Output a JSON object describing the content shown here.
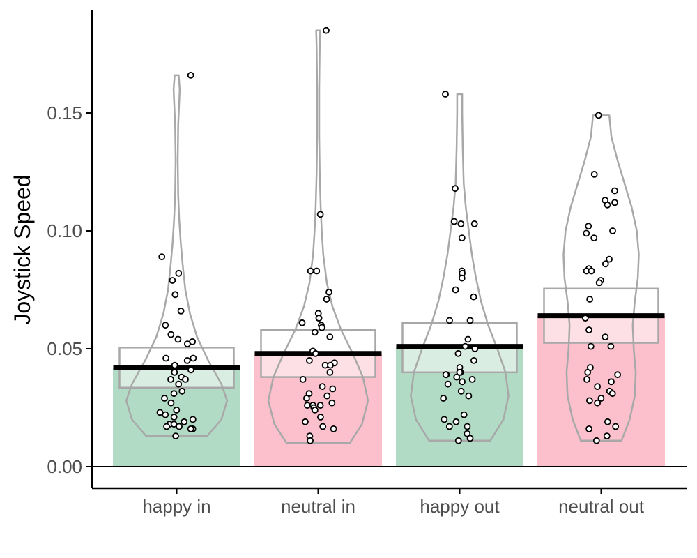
{
  "chart_data": {
    "type": "bar",
    "ylabel": "Joystick Speed",
    "xlabel": "",
    "ylim": [
      -0.01,
      0.195
    ],
    "yticks": [
      0.0,
      0.05,
      0.1,
      0.15
    ],
    "ytick_labels": [
      "0.00",
      "0.05",
      "0.10",
      "0.15"
    ],
    "grid": false,
    "categories": [
      "happy in",
      "neutral in",
      "happy out",
      "neutral out"
    ],
    "colors": {
      "happy": "#b2dbc5",
      "neutral": "#fbc0cc",
      "violin": "#a8a8a8",
      "mean_line": "#000000",
      "point_stroke": "#000000"
    },
    "groups": [
      {
        "label": "happy in",
        "color_key": "happy",
        "mean": 0.042,
        "ci": [
          0.0335,
          0.0505
        ],
        "violin": {
          "min": 0.013,
          "max": 0.166,
          "profile": [
            [
              0.013,
              0.6
            ],
            [
              0.02,
              0.88
            ],
            [
              0.028,
              0.99
            ],
            [
              0.035,
              0.88
            ],
            [
              0.045,
              0.62
            ],
            [
              0.055,
              0.4
            ],
            [
              0.065,
              0.26
            ],
            [
              0.075,
              0.17
            ],
            [
              0.085,
              0.12
            ],
            [
              0.095,
              0.08
            ],
            [
              0.105,
              0.05
            ],
            [
              0.115,
              0.03
            ],
            [
              0.13,
              0.02
            ],
            [
              0.145,
              0.03
            ],
            [
              0.16,
              0.06
            ],
            [
              0.166,
              0.04
            ]
          ]
        },
        "points": [
          0.166,
          0.089,
          0.082,
          0.079,
          0.073,
          0.066,
          0.06,
          0.056,
          0.054,
          0.053,
          0.052,
          0.046,
          0.046,
          0.045,
          0.043,
          0.041,
          0.04,
          0.038,
          0.037,
          0.037,
          0.035,
          0.032,
          0.031,
          0.029,
          0.027,
          0.024,
          0.023,
          0.022,
          0.021,
          0.02,
          0.019,
          0.018,
          0.018,
          0.017,
          0.017,
          0.016,
          0.016,
          0.013
        ]
      },
      {
        "label": "neutral in",
        "color_key": "neutral",
        "mean": 0.048,
        "ci": [
          0.038,
          0.058
        ],
        "violin": {
          "min": 0.01,
          "max": 0.185,
          "profile": [
            [
              0.01,
              0.62
            ],
            [
              0.018,
              0.86
            ],
            [
              0.028,
              0.98
            ],
            [
              0.038,
              0.88
            ],
            [
              0.048,
              0.68
            ],
            [
              0.058,
              0.45
            ],
            [
              0.068,
              0.28
            ],
            [
              0.078,
              0.17
            ],
            [
              0.09,
              0.1
            ],
            [
              0.1,
              0.07
            ],
            [
              0.11,
              0.05
            ],
            [
              0.125,
              0.03
            ],
            [
              0.14,
              0.02
            ],
            [
              0.16,
              0.02
            ],
            [
              0.178,
              0.03
            ],
            [
              0.185,
              0.04
            ]
          ]
        },
        "points": [
          0.185,
          0.107,
          0.083,
          0.083,
          0.074,
          0.071,
          0.065,
          0.063,
          0.063,
          0.061,
          0.06,
          0.059,
          0.057,
          0.055,
          0.049,
          0.048,
          0.045,
          0.044,
          0.043,
          0.043,
          0.04,
          0.037,
          0.034,
          0.033,
          0.031,
          0.03,
          0.029,
          0.027,
          0.026,
          0.026,
          0.026,
          0.025,
          0.024,
          0.021,
          0.019,
          0.017,
          0.016,
          0.013,
          0.011
        ]
      },
      {
        "label": "happy out",
        "color_key": "happy",
        "mean": 0.051,
        "ci": [
          0.04,
          0.061
        ],
        "violin": {
          "min": 0.011,
          "max": 0.158,
          "profile": [
            [
              0.011,
              0.6
            ],
            [
              0.02,
              0.86
            ],
            [
              0.03,
              0.96
            ],
            [
              0.04,
              0.9
            ],
            [
              0.05,
              0.74
            ],
            [
              0.06,
              0.56
            ],
            [
              0.07,
              0.42
            ],
            [
              0.08,
              0.32
            ],
            [
              0.09,
              0.24
            ],
            [
              0.1,
              0.18
            ],
            [
              0.11,
              0.12
            ],
            [
              0.12,
              0.08
            ],
            [
              0.135,
              0.06
            ],
            [
              0.15,
              0.05
            ],
            [
              0.158,
              0.05
            ]
          ]
        },
        "points": [
          0.158,
          0.118,
          0.104,
          0.103,
          0.103,
          0.097,
          0.083,
          0.082,
          0.08,
          0.075,
          0.072,
          0.062,
          0.062,
          0.054,
          0.051,
          0.05,
          0.048,
          0.045,
          0.042,
          0.04,
          0.04,
          0.039,
          0.039,
          0.038,
          0.037,
          0.036,
          0.035,
          0.032,
          0.03,
          0.029,
          0.022,
          0.02,
          0.019,
          0.017,
          0.017,
          0.014,
          0.012,
          0.011
        ]
      },
      {
        "label": "neutral out",
        "color_key": "neutral",
        "mean": 0.064,
        "ci": [
          0.0525,
          0.0755
        ],
        "violin": {
          "min": 0.011,
          "max": 0.149,
          "profile": [
            [
              0.011,
              0.4
            ],
            [
              0.02,
              0.56
            ],
            [
              0.03,
              0.66
            ],
            [
              0.04,
              0.68
            ],
            [
              0.05,
              0.64
            ],
            [
              0.06,
              0.62
            ],
            [
              0.07,
              0.66
            ],
            [
              0.08,
              0.72
            ],
            [
              0.09,
              0.74
            ],
            [
              0.1,
              0.7
            ],
            [
              0.11,
              0.6
            ],
            [
              0.12,
              0.46
            ],
            [
              0.13,
              0.32
            ],
            [
              0.14,
              0.2
            ],
            [
              0.149,
              0.16
            ]
          ]
        },
        "points": [
          0.149,
          0.124,
          0.117,
          0.113,
          0.112,
          0.111,
          0.102,
          0.1,
          0.099,
          0.097,
          0.088,
          0.086,
          0.084,
          0.083,
          0.083,
          0.079,
          0.078,
          0.071,
          0.063,
          0.058,
          0.055,
          0.051,
          0.051,
          0.042,
          0.04,
          0.039,
          0.037,
          0.036,
          0.034,
          0.032,
          0.031,
          0.029,
          0.028,
          0.027,
          0.019,
          0.017,
          0.016,
          0.013,
          0.011
        ]
      }
    ]
  }
}
